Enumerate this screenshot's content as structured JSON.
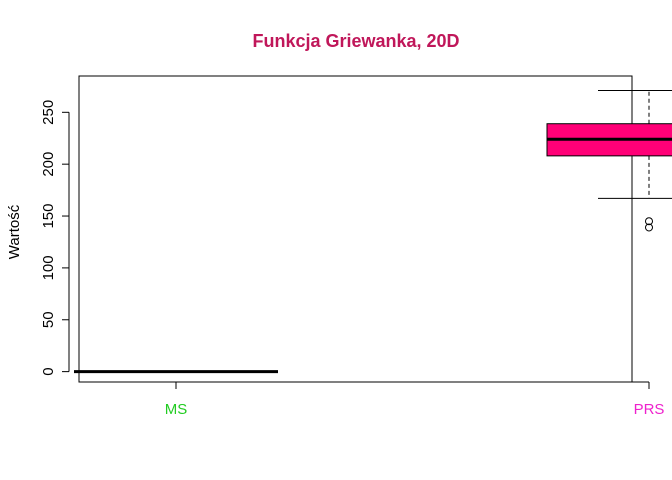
{
  "chart_data": {
    "type": "boxplot",
    "title": "Funkcja Griewanka, 20D",
    "xlabel": "",
    "ylabel": "Wartość",
    "ylim": [
      -10,
      285
    ],
    "yticks": [
      0,
      50,
      100,
      150,
      200,
      250
    ],
    "grid": false,
    "legend": "none",
    "categories": [
      "MS",
      "PRS"
    ],
    "boxes": [
      {
        "category": "MS",
        "min": 0,
        "q1": 0,
        "median": 0,
        "q3": 0,
        "max": 0,
        "outliers": [],
        "fill": "#000000",
        "label_color": "#22cc22"
      },
      {
        "category": "PRS",
        "min": 167,
        "q1": 208,
        "median": 224,
        "q3": 239,
        "max": 271,
        "outliers": [
          139,
          145
        ],
        "fill": "#ff0077",
        "label_color": "#ee22cc"
      }
    ]
  },
  "colors": {
    "title": "#c0175a",
    "axis": "#000000"
  }
}
